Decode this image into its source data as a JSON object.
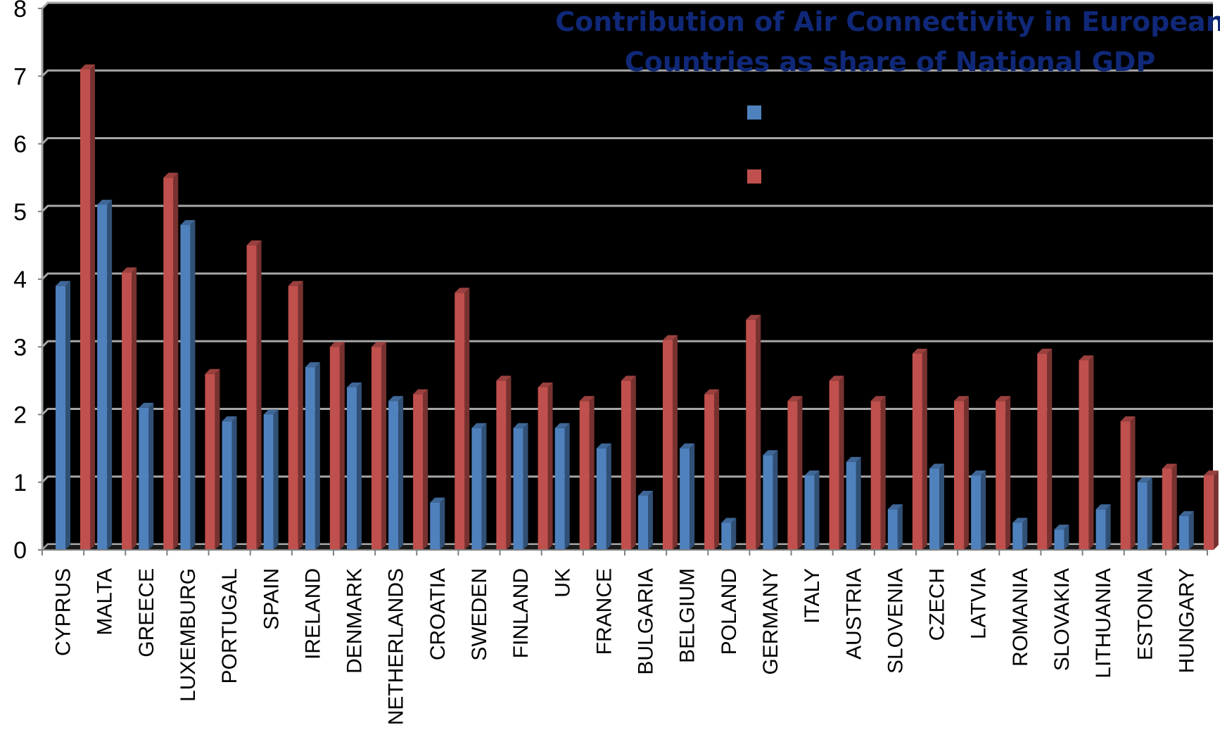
{
  "chart_data": {
    "type": "bar",
    "title_lines": [
      "Contribution of Air Connectivity  in European",
      "Countries as share of  National GDP"
    ],
    "categories": [
      "CYPRUS",
      "MALTA",
      "GREECE",
      "LUXEMBURG",
      "PORTUGAL",
      "SPAIN",
      "IRELAND",
      "DENMARK",
      "NETHERLANDS",
      "CROATIA",
      "SWEDEN",
      "FINLAND",
      "UK",
      "FRANCE",
      "BULGARIA",
      "BELGIUM",
      "POLAND",
      "GERMANY",
      "ITALY",
      "AUSTRIA",
      "SLOVENIA",
      "CZECH",
      "LATVIA",
      "ROMANIA",
      "SLOVAKIA",
      "LITHUANIA",
      "ESTONIA",
      "HUNGARY"
    ],
    "series": [
      {
        "color": "#4f81bd",
        "values": [
          3.9,
          5.1,
          2.1,
          4.8,
          1.9,
          2.0,
          2.7,
          2.4,
          2.2,
          0.7,
          1.8,
          1.8,
          1.8,
          1.5,
          0.8,
          1.5,
          0.4,
          1.4,
          1.1,
          1.3,
          0.6,
          1.2,
          1.1,
          0.4,
          0.3,
          0.6,
          1.0,
          0.5
        ]
      },
      {
        "color": "#c0504d",
        "values": [
          7.1,
          4.1,
          5.5,
          2.6,
          4.5,
          3.9,
          3.0,
          3.0,
          2.3,
          3.8,
          2.5,
          2.4,
          2.2,
          2.5,
          3.1,
          2.3,
          3.4,
          2.2,
          2.5,
          2.2,
          2.9,
          2.2,
          2.2,
          2.9,
          2.8,
          1.9,
          1.2,
          1.1
        ]
      }
    ],
    "ylim": [
      0,
      8
    ],
    "yticks": [
      0,
      1,
      2,
      3,
      4,
      5,
      6,
      7,
      8
    ],
    "grid": true,
    "legend": "top-center, color swatches only",
    "background": "#000000",
    "gridline_color": "#a6a6a6",
    "title_color": "#102878"
  }
}
